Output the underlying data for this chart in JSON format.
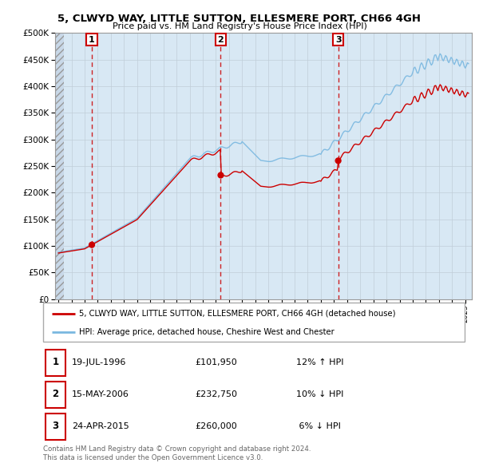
{
  "title": "5, CLWYD WAY, LITTLE SUTTON, ELLESMERE PORT, CH66 4GH",
  "subtitle": "Price paid vs. HM Land Registry's House Price Index (HPI)",
  "ylim": [
    0,
    500000
  ],
  "yticks": [
    0,
    50000,
    100000,
    150000,
    200000,
    250000,
    300000,
    350000,
    400000,
    450000,
    500000
  ],
  "xlim_start": 1993.75,
  "xlim_end": 2025.5,
  "hatch_end": 1994.42,
  "sale_dates": [
    1996.55,
    2006.37,
    2015.32
  ],
  "sale_prices": [
    101950,
    232750,
    260000
  ],
  "sale_labels": [
    "1",
    "2",
    "3"
  ],
  "hpi_color": "#7ab8e0",
  "price_color": "#cc0000",
  "dot_color": "#cc0000",
  "vline_color": "#cc0000",
  "chart_bg": "#d8e8f4",
  "grid_color": "#c0cdd8",
  "legend_label_price": "5, CLWYD WAY, LITTLE SUTTON, ELLESMERE PORT, CH66 4GH (detached house)",
  "legend_label_hpi": "HPI: Average price, detached house, Cheshire West and Chester",
  "table_rows": [
    [
      "1",
      "19-JUL-1996",
      "£101,950",
      "12% ↑ HPI"
    ],
    [
      "2",
      "15-MAY-2006",
      "£232,750",
      "10% ↓ HPI"
    ],
    [
      "3",
      "24-APR-2015",
      "£260,000",
      " 6% ↓ HPI"
    ]
  ],
  "footnote": "Contains HM Land Registry data © Crown copyright and database right 2024.\nThis data is licensed under the Open Government Licence v3.0."
}
